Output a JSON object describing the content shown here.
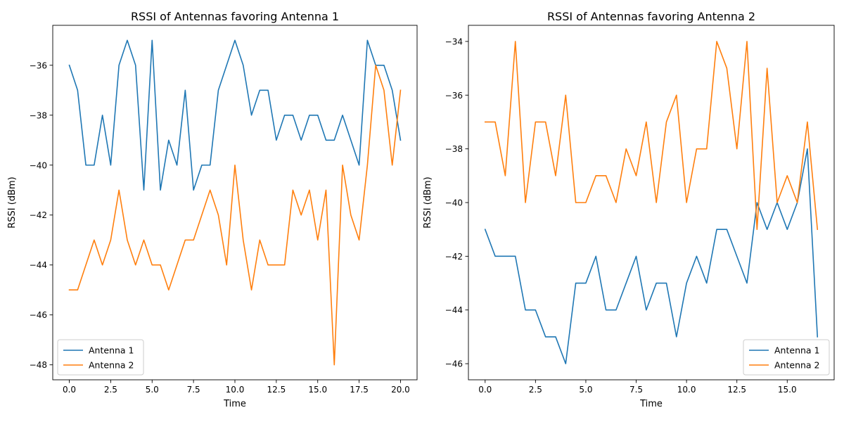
{
  "chart_data": [
    {
      "type": "line",
      "title": "RSSI of Antennas favoring Antenna 1",
      "xlabel": "Time",
      "ylabel": "RSSI (dBm)",
      "xlim": [
        -1.0,
        21.0
      ],
      "ylim": [
        -48.6,
        -34.4
      ],
      "xticks": [
        0.0,
        2.5,
        5.0,
        7.5,
        10.0,
        12.5,
        15.0,
        17.5,
        20.0
      ],
      "xtick_labels": [
        "0.0",
        "2.5",
        "5.0",
        "7.5",
        "10.0",
        "12.5",
        "15.0",
        "17.5",
        "20.0"
      ],
      "yticks": [
        -48,
        -46,
        -44,
        -42,
        -40,
        -38,
        -36
      ],
      "ytick_labels": [
        "−48",
        "−46",
        "−44",
        "−42",
        "−40",
        "−38",
        "−36"
      ],
      "legend_position": "lower-left",
      "x": [
        0.0,
        0.5,
        1.0,
        1.5,
        2.0,
        2.5,
        3.0,
        3.5,
        4.0,
        4.5,
        5.0,
        5.5,
        6.0,
        6.5,
        7.0,
        7.5,
        8.0,
        8.5,
        9.0,
        9.5,
        10.0,
        10.5,
        11.0,
        11.5,
        12.0,
        12.5,
        13.0,
        13.5,
        14.0,
        14.5,
        15.0,
        15.5,
        16.0,
        16.5,
        17.0,
        17.5,
        18.0,
        18.5,
        19.0,
        19.5,
        20.0
      ],
      "series": [
        {
          "name": "Antenna 1",
          "color": "#1f77b4",
          "values": [
            -36,
            -37,
            -40,
            -40,
            -38,
            -40,
            -36,
            -35,
            -36,
            -41,
            -35,
            -41,
            -39,
            -40,
            -37,
            -41,
            -40,
            -40,
            -37,
            -36,
            -35,
            -36,
            -38,
            -37,
            -37,
            -39,
            -38,
            -38,
            -39,
            -38,
            -38,
            -39,
            -39,
            -38,
            -39,
            -40,
            -35,
            -36,
            -36,
            -37,
            -39
          ]
        },
        {
          "name": "Antenna 2",
          "color": "#ff7f0e",
          "values": [
            -45,
            -45,
            -44,
            -43,
            -44,
            -43,
            -41,
            -43,
            -44,
            -43,
            -44,
            -44,
            -45,
            -44,
            -43,
            -43,
            -42,
            -41,
            -42,
            -44,
            -40,
            -43,
            -45,
            -43,
            -44,
            -44,
            -44,
            -41,
            -42,
            -41,
            -43,
            -41,
            -48,
            -40,
            -42,
            -43,
            -40,
            -36,
            -37,
            -40,
            -37
          ]
        }
      ]
    },
    {
      "type": "line",
      "title": "RSSI of Antennas favoring Antenna 2",
      "xlabel": "Time",
      "ylabel": "RSSI (dBm)",
      "xlim": [
        -0.83,
        17.33
      ],
      "ylim": [
        -46.6,
        -33.4
      ],
      "xticks": [
        0.0,
        2.5,
        5.0,
        7.5,
        10.0,
        12.5,
        15.0
      ],
      "xtick_labels": [
        "0.0",
        "2.5",
        "5.0",
        "7.5",
        "10.0",
        "12.5",
        "15.0"
      ],
      "yticks": [
        -46,
        -44,
        -42,
        -40,
        -38,
        -36,
        -34
      ],
      "ytick_labels": [
        "−46",
        "−44",
        "−42",
        "−40",
        "−38",
        "−36",
        "−34"
      ],
      "legend_position": "lower-right",
      "x": [
        0.0,
        0.5,
        1.0,
        1.5,
        2.0,
        2.5,
        3.0,
        3.5,
        4.0,
        4.5,
        5.0,
        5.5,
        6.0,
        6.5,
        7.0,
        7.5,
        8.0,
        8.5,
        9.0,
        9.5,
        10.0,
        10.5,
        11.0,
        11.5,
        12.0,
        12.5,
        13.0,
        13.5,
        14.0,
        14.5,
        15.0,
        15.5,
        16.0,
        16.5
      ],
      "series": [
        {
          "name": "Antenna 1",
          "color": "#1f77b4",
          "values": [
            -41,
            -42,
            -42,
            -42,
            -44,
            -44,
            -45,
            -45,
            -46,
            -43,
            -43,
            -42,
            -44,
            -44,
            -43,
            -42,
            -44,
            -43,
            -43,
            -45,
            -43,
            -42,
            -43,
            -41,
            -41,
            -42,
            -43,
            -40,
            -41,
            -40,
            -41,
            -40,
            -38,
            -45
          ]
        },
        {
          "name": "Antenna 2",
          "color": "#ff7f0e",
          "values": [
            -37,
            -37,
            -39,
            -34,
            -40,
            -37,
            -37,
            -39,
            -36,
            -40,
            -40,
            -39,
            -39,
            -40,
            -38,
            -39,
            -37,
            -40,
            -37,
            -36,
            -40,
            -38,
            -38,
            -34,
            -35,
            -38,
            -34,
            -41,
            -35,
            -40,
            -39,
            -40,
            -37,
            -41
          ]
        }
      ]
    }
  ]
}
